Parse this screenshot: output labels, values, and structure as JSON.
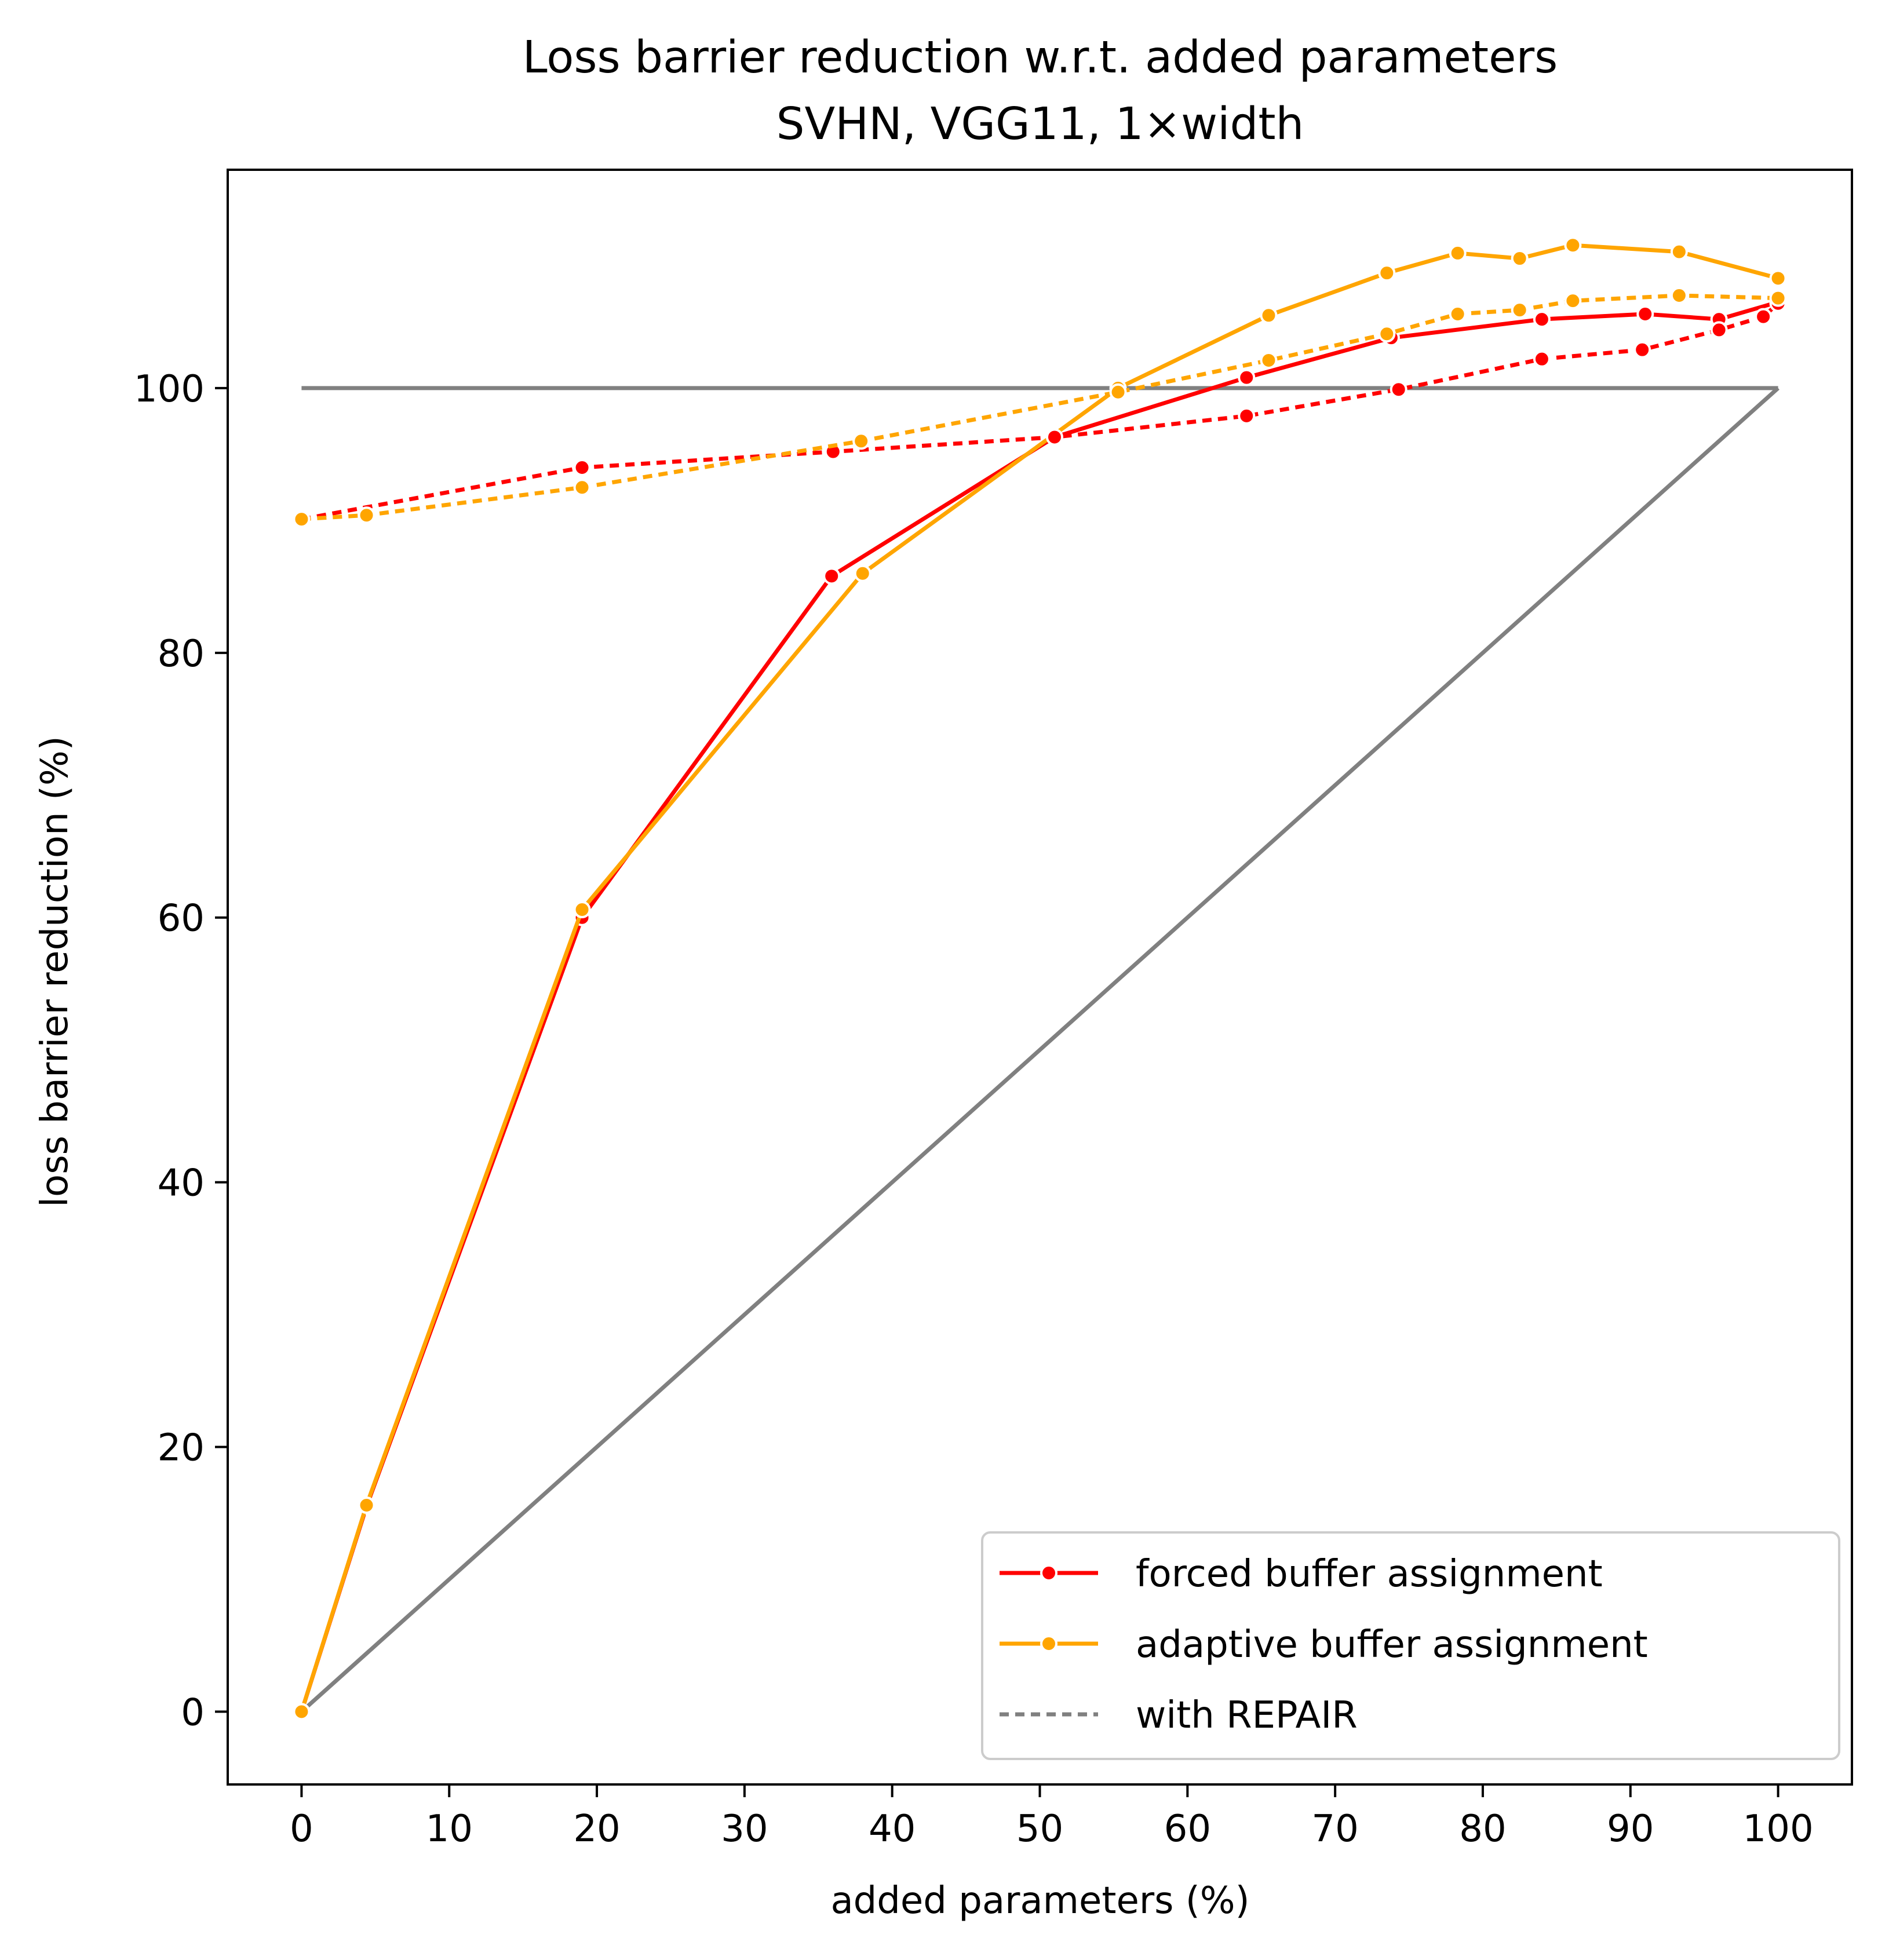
{
  "chart_data": {
    "type": "line",
    "title": "Loss barrier reduction w.r.t. added parameters",
    "subtitle": "SVHN, VGG11, 1×width",
    "xlabel": "added parameters (%)",
    "ylabel": "loss barrier reduction (%)",
    "xlim": [
      -5,
      105
    ],
    "ylim": [
      -5.5,
      116.5
    ],
    "xticks": [
      "0",
      "10",
      "20",
      "30",
      "40",
      "50",
      "60",
      "70",
      "80",
      "90",
      "100"
    ],
    "yticks": [
      "0",
      "20",
      "40",
      "60",
      "80",
      "100"
    ],
    "grid": false,
    "legend_position": "lower-right",
    "legend": [
      {
        "label": "forced buffer assignment",
        "color": "#ff0000",
        "style": "solid",
        "marker": "circle"
      },
      {
        "label": "adaptive buffer assignment",
        "color": "#ffa500",
        "style": "solid",
        "marker": "circle"
      },
      {
        "label": "with REPAIR",
        "color": "#808080",
        "style": "dotted",
        "marker": "none"
      }
    ],
    "series": [
      {
        "color": "#808080",
        "style": "solid",
        "marker": "none",
        "x": [
          0,
          100
        ],
        "y": [
          100,
          100
        ]
      },
      {
        "color": "#808080",
        "style": "solid",
        "marker": "none",
        "x": [
          0,
          100
        ],
        "y": [
          0,
          100
        ]
      },
      {
        "color": "#ff0000",
        "style": "solid",
        "marker": "circle",
        "x": [
          0,
          4.4,
          19,
          35.9,
          51,
          64,
          73.8,
          84,
          91,
          96,
          100
        ],
        "y": [
          0,
          15.5,
          60,
          85.8,
          96.3,
          100.8,
          103.8,
          105.2,
          105.6,
          105.2,
          106.5
        ]
      },
      {
        "color": "#ffa500",
        "style": "solid",
        "marker": "circle",
        "x": [
          0,
          4.4,
          19,
          38,
          55.3,
          65.5,
          73.5,
          78.3,
          82.5,
          86.1,
          93.3,
          100
        ],
        "y": [
          0,
          15.6,
          60.6,
          86,
          100,
          105.5,
          108.7,
          110.2,
          109.8,
          110.8,
          110.3,
          108.3
        ]
      },
      {
        "color": "#ff0000",
        "style": "dotted",
        "marker": "circle",
        "x": [
          0,
          19,
          36,
          51,
          64,
          74.3,
          84,
          90.8,
          96,
          99,
          100
        ],
        "y": [
          90.1,
          94,
          95.2,
          96.3,
          97.9,
          99.9,
          102.2,
          102.9,
          104.4,
          105.4,
          106.4
        ]
      },
      {
        "color": "#ffa500",
        "style": "dotted",
        "marker": "circle",
        "x": [
          0,
          4.4,
          19,
          37.9,
          55.3,
          65.5,
          73.5,
          78.3,
          82.5,
          86.1,
          93.3,
          100
        ],
        "y": [
          90.1,
          90.4,
          92.5,
          96,
          99.7,
          102.1,
          104.1,
          105.6,
          105.9,
          106.6,
          107,
          106.8
        ]
      }
    ]
  }
}
